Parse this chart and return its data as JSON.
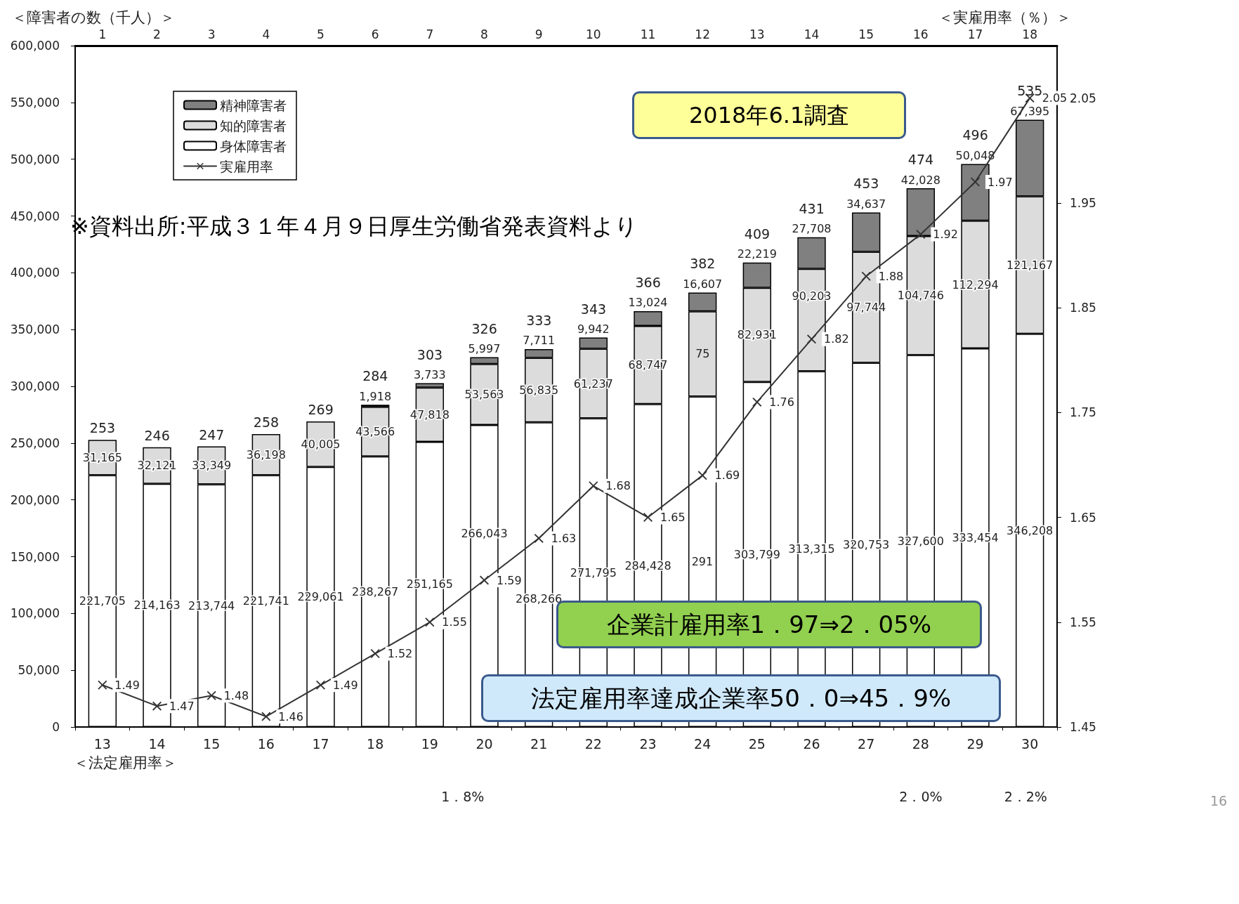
{
  "chart_data": {
    "type": "bar",
    "stacked": true,
    "ylabel": "＜障害者の数（千人）＞",
    "y2label": "＜実雇用率（％）＞",
    "categories": [
      "13",
      "14",
      "15",
      "16",
      "17",
      "18",
      "19",
      "20",
      "21",
      "22",
      "23",
      "24",
      "25",
      "26",
      "27",
      "28",
      "29",
      "30"
    ],
    "ylim": [
      0,
      600000
    ],
    "yticks": [
      {
        "value": 0,
        "label": "0"
      },
      {
        "value": 50000,
        "label": "50,000"
      },
      {
        "value": 100000,
        "label": "100,000"
      },
      {
        "value": 150000,
        "label": "150,000"
      },
      {
        "value": 200000,
        "label": "200,000"
      },
      {
        "value": 250000,
        "label": "250,000"
      },
      {
        "value": 300000,
        "label": "300,000"
      },
      {
        "value": 350000,
        "label": "350,000"
      },
      {
        "value": 400000,
        "label": "400,000"
      },
      {
        "value": 450000,
        "label": "450,000"
      },
      {
        "value": 500000,
        "label": "500,000"
      },
      {
        "value": 550000,
        "label": "550,000"
      },
      {
        "value": 600000,
        "label": "600,000"
      }
    ],
    "y2lim": [
      1.45,
      2.1
    ],
    "y2ticks": [
      1.45,
      1.55,
      1.65,
      1.75,
      1.85,
      1.95,
      2.05
    ],
    "x2lim": [
      0.5,
      18.5
    ],
    "x2ticks": [
      1,
      2,
      3,
      4,
      5,
      6,
      7,
      8,
      9,
      10,
      11,
      12,
      13,
      14,
      15,
      16,
      17,
      18
    ],
    "series": [
      {
        "name": "身体障害者",
        "color": "#ffffff",
        "values": [
          221705,
          214163,
          213744,
          221741,
          229061,
          238267,
          251165,
          266043,
          268266,
          271795,
          284428,
          291000,
          303799,
          313315,
          320753,
          327600,
          333454,
          346208
        ],
        "value_labels": [
          "221,705",
          "214,163",
          "213,744",
          "221,741",
          "229,061",
          "238,267",
          "251,165",
          "266,043",
          "268,266",
          "271,795",
          "284,428",
          null,
          "303,799",
          "313,315",
          "320,753",
          "327,600",
          "333,454",
          "346,208"
        ]
      },
      {
        "name": "知的障害者",
        "color": "#dcdcdc",
        "values": [
          31165,
          32121,
          33349,
          36198,
          40005,
          43566,
          47818,
          53563,
          56835,
          61237,
          68747,
          75000,
          82931,
          90203,
          97744,
          104746,
          112294,
          121167
        ],
        "value_labels": [
          "31,165",
          "32,121",
          "33,349",
          "36,198",
          "40,005",
          "43,566",
          "47,818",
          "53,563",
          "56,835",
          "61,237",
          "68,747",
          null,
          "82,931",
          "90,203",
          "97,744",
          "104,746",
          "112,294",
          "121,167"
        ]
      },
      {
        "name": "精神障害者",
        "color": "#808080",
        "values": [
          null,
          null,
          null,
          null,
          null,
          1918,
          3733,
          5997,
          7711,
          9942,
          13024,
          16607,
          22219,
          27708,
          34637,
          42028,
          50048,
          67395
        ],
        "value_labels": [
          null,
          null,
          null,
          null,
          null,
          "1,918",
          "3,733",
          "5,997",
          "7,711",
          "9,942",
          "13,024",
          "16,607",
          "22,219",
          "27,708",
          "34,637",
          "42,028",
          "50,048",
          "67,395"
        ]
      },
      {
        "name": "実雇用率",
        "type": "line",
        "axis": "y2",
        "color": "#333333",
        "marker": "cross",
        "line_style": "solid",
        "values": [
          1.49,
          1.47,
          1.48,
          1.46,
          1.49,
          1.52,
          1.55,
          1.59,
          1.63,
          1.68,
          1.65,
          1.69,
          1.76,
          1.82,
          1.88,
          1.92,
          1.97,
          2.05
        ],
        "value_labels": [
          "1.49",
          "1.47",
          "1.48",
          "1.46",
          "1.49",
          "1.52",
          "1.55",
          "1.59",
          "1.63",
          "1.68",
          "1.65",
          "1.69",
          "1.76",
          "1.82",
          "1.88",
          "1.92",
          "1.97",
          "2.05"
        ]
      }
    ],
    "legend": "top left",
    "annotations": [
      "※資料出所:平成３１年４月９日厚生労働省発表資料より",
      "2018年6.1調査",
      "企業計雇用率1．97⇒2．05%",
      "法定雇用率達成企業率50．0⇒45．9%",
      "＜法定雇用率＞",
      "1．8%",
      "2．0%",
      "2．2%",
      "16",
      "291",
      "75",
      {
        "text": "253",
        "x": "13",
        "y": 252870
      },
      {
        "text": "246",
        "x": "14",
        "y": 246284
      },
      {
        "text": "247",
        "x": "15",
        "y": 247093
      },
      {
        "text": "258",
        "x": "16",
        "y": 257939
      },
      {
        "text": "269",
        "x": "17",
        "y": 269066
      },
      {
        "text": "284",
        "x": "18",
        "y": 283751
      },
      {
        "text": "303",
        "x": "19",
        "y": 302716
      },
      {
        "text": "326",
        "x": "20",
        "y": 325603
      },
      {
        "text": "333",
        "x": "21",
        "y": 332812
      },
      {
        "text": "343",
        "x": "22",
        "y": 342974
      },
      {
        "text": "366",
        "x": "23",
        "y": 366199
      },
      {
        "text": "382",
        "x": "24",
        "y": 382607
      },
      {
        "text": "409",
        "x": "25",
        "y": 408949
      },
      {
        "text": "431",
        "x": "26",
        "y": 431226
      },
      {
        "text": "453",
        "x": "27",
        "y": 453134
      },
      {
        "text": "474",
        "x": "28",
        "y": 474374
      },
      {
        "text": "496",
        "x": "29",
        "y": 495796
      },
      {
        "text": "535",
        "x": "30",
        "y": 534770
      }
    ]
  }
}
